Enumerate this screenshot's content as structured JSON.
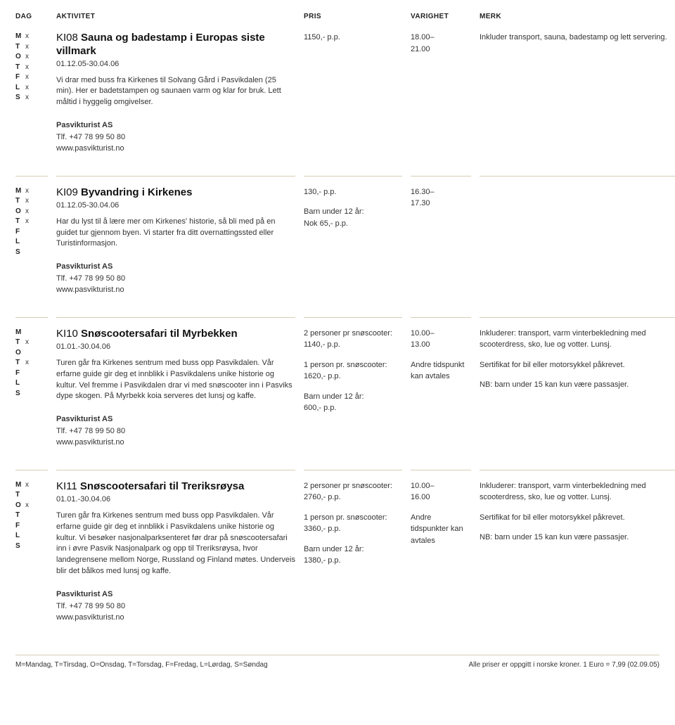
{
  "headers": {
    "dag": "DAG",
    "aktivitet": "AKTIVITET",
    "pris": "PRIS",
    "varighet": "VARIGHET",
    "merk": "MERK"
  },
  "dayLabels": [
    "M",
    "T",
    "O",
    "T",
    "F",
    "L",
    "S"
  ],
  "rows": [
    {
      "days": [
        "x",
        "x",
        "x",
        "x",
        "x",
        "x",
        "x"
      ],
      "code": "KI08",
      "title": "Sauna og badestamp i Europas siste villmark",
      "dates": "01.12.05-30.04.06",
      "desc": "Vi drar med buss fra Kirkenes til Solvang Gård i Pasvikdalen (25 min). Her er badetstampen og saunaen varm og klar for bruk. Lett måltid i hyggelig omgivelser.",
      "contact": {
        "company": "Pasvikturist AS",
        "phone": "Tlf. +47 78 99 50 80",
        "web": "www.pasvikturist.no"
      },
      "prices": [
        {
          "label": "",
          "value": "1150,- p.p."
        }
      ],
      "duration": "18.00–21.00",
      "note": "Inkluder transport, sauna, badestamp og lett servering."
    },
    {
      "days": [
        "x",
        "x",
        "x",
        "x",
        "",
        "",
        ""
      ],
      "code": "KI09",
      "title": "Byvandring i Kirkenes",
      "dates": "01.12.05-30.04.06",
      "desc": "Har du lyst til å lære mer om Kirkenes' historie, så bli med på en guidet tur gjennom byen. Vi starter fra ditt overnattingssted eller Turistinformasjon.",
      "contact": {
        "company": "Pasvikturist AS",
        "phone": "Tlf. +47 78 99 50 80",
        "web": "www.pasvikturist.no"
      },
      "prices": [
        {
          "label": "",
          "value": "130,- p.p."
        },
        {
          "label": "Barn under 12 år:",
          "value": "Nok 65,- p.p."
        }
      ],
      "duration": "16.30–17.30",
      "note": ""
    },
    {
      "days": [
        "",
        "x",
        "",
        "x",
        "",
        "",
        ""
      ],
      "code": "KI10",
      "title": "Snøscootersafari til Myrbekken",
      "dates": "01.01.-30.04.06",
      "desc": "Turen går fra Kirkenes sentrum med buss opp Pasvikdalen. Vår erfarne guide gir deg et innblikk i Pasvikdalens unike historie og kultur. Vel fremme i Pasvikdalen drar vi med snøscooter inn i Pasviks dype skogen. På Myrbekk koia serveres det lunsj og kaffe.",
      "contact": {
        "company": "Pasvikturist AS",
        "phone": "Tlf. +47 78 99 50 80",
        "web": "www.pasvikturist.no"
      },
      "prices": [
        {
          "label": "2 personer pr snøscooter:",
          "value": "1140,- p.p."
        },
        {
          "label": "1 person pr. snøscooter:",
          "value": "1620,- p.p."
        },
        {
          "label": "Barn under 12 år:",
          "value": "600,- p.p."
        }
      ],
      "duration": "10.00–13.00",
      "durationExtra": "Andre tidspunkt kan avtales",
      "note": "Inkluderer: transport, varm vinterbekledning med scooterdress, sko, lue og votter. Lunsj.\n\nSertifikat for bil eller motorsykkel påkrevet.\n\nNB: barn under 15 kan kun være passasjer."
    },
    {
      "days": [
        "x",
        "",
        "x",
        "",
        "",
        "",
        ""
      ],
      "code": "KI11",
      "title": "Snøscootersafari til Treriksrøysa",
      "dates": "01.01.-30.04.06",
      "desc": "Turen går fra Kirkenes sentrum med buss opp Pasvikdalen. Vår erfarne guide gir deg et innblikk i Pasvikdalens unike historie og kultur. Vi besøker nasjonalparksenteret før drar på snøscootersafari inn i øvre Pasvik Nasjonalpark og opp til Treriksrøysa, hvor landegrensene mellom Norge, Russland og Finland møtes. Underveis blir det bålkos med lunsj og kaffe.",
      "contact": {
        "company": "Pasvikturist AS",
        "phone": "Tlf. +47 78 99 50 80",
        "web": "www.pasvikturist.no"
      },
      "prices": [
        {
          "label": "2 personer pr snøscooter:",
          "value": "2760,- p.p."
        },
        {
          "label": "1 person pr. snøscooter:",
          "value": "3360,- p.p."
        },
        {
          "label": "Barn under 12 år:",
          "value": "1380,- p.p."
        }
      ],
      "duration": "10.00–16.00",
      "durationExtra": "Andre tidspunkter kan avtales",
      "note": "Inkluderer: transport, varm vinterbekledning med scooterdress, sko, lue og votter. Lunsj.\n\nSertifikat for bil eller motorsykkel påkrevet.\n\nNB: barn under 15 kan kun være passasjer."
    }
  ],
  "footer": {
    "left": "M=Mandag, T=Tirsdag, O=Onsdag, T=Torsdag, F=Fredag, L=Lørdag, S=Søndag",
    "right": "Alle priser er oppgitt i norske kroner. 1 Euro = 7,99 (02.09.05)"
  }
}
